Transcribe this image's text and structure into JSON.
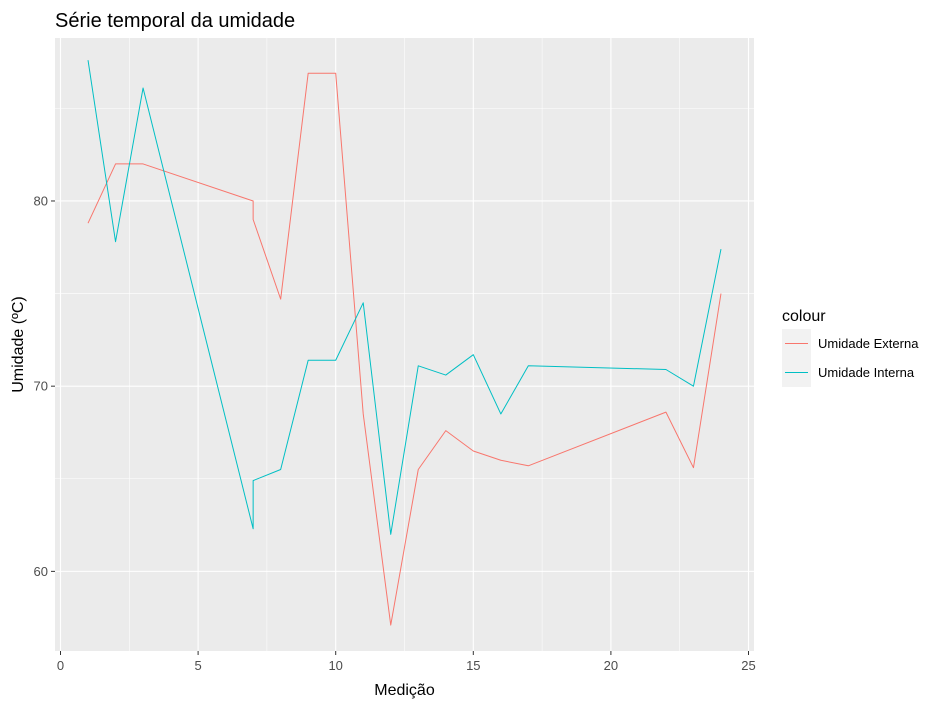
{
  "chart_data": {
    "type": "line",
    "title": "Série temporal da umidade",
    "xlabel": "Medição",
    "ylabel": "Umidade (ºC)",
    "xlim": [
      -0.2,
      25.2
    ],
    "ylim": [
      55.7,
      88.8
    ],
    "x_ticks": [
      0,
      5,
      10,
      15,
      20,
      25
    ],
    "y_ticks": [
      60,
      70,
      80
    ],
    "grid": true,
    "legend": {
      "title": "colour",
      "position": "right"
    },
    "series": [
      {
        "name": "Umidade Externa",
        "color": "#F8766D",
        "points": [
          [
            1,
            78.8
          ],
          [
            2,
            82.0
          ],
          [
            3,
            82.0
          ],
          [
            7,
            80.0
          ],
          [
            7,
            79.0
          ],
          [
            8,
            74.7
          ],
          [
            9,
            86.9
          ],
          [
            10,
            86.9
          ],
          [
            11,
            68.5
          ],
          [
            12,
            57.1
          ],
          [
            13,
            65.5
          ],
          [
            14,
            67.6
          ],
          [
            15,
            66.5
          ],
          [
            16,
            66.0
          ],
          [
            17,
            65.7
          ],
          [
            22,
            68.6
          ],
          [
            23,
            65.6
          ],
          [
            24,
            75.0
          ]
        ]
      },
      {
        "name": "Umidade Interna",
        "color": "#00BFC4",
        "points": [
          [
            1,
            87.6
          ],
          [
            2,
            77.8
          ],
          [
            3,
            86.1
          ],
          [
            7,
            62.3
          ],
          [
            7,
            64.9
          ],
          [
            8,
            65.5
          ],
          [
            9,
            71.4
          ],
          [
            10,
            71.4
          ],
          [
            11,
            74.5
          ],
          [
            12,
            62.0
          ],
          [
            13,
            71.1
          ],
          [
            14,
            70.6
          ],
          [
            15,
            71.7
          ],
          [
            16,
            68.5
          ],
          [
            17,
            71.1
          ],
          [
            22,
            70.9
          ],
          [
            23,
            70.0
          ],
          [
            24,
            77.4
          ]
        ]
      }
    ]
  }
}
